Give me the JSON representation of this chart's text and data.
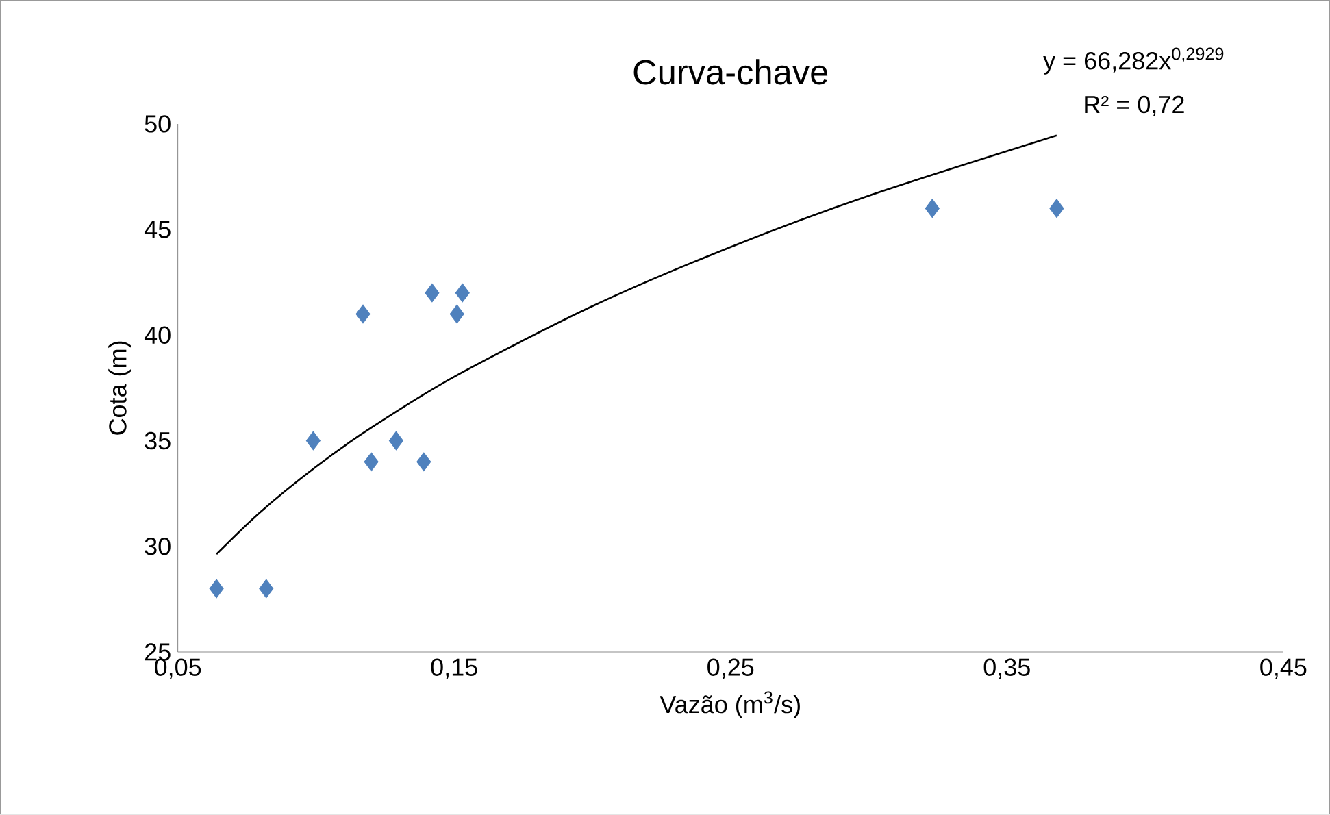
{
  "chart_data": {
    "type": "scatter",
    "title": "Curva-chave",
    "xlabel": "Vazão (m$^{3}$/s)",
    "ylabel": "Cota (m)",
    "annotations": [
      "y = 66,282x$^{0,2929}$",
      "R² = 0,72"
    ],
    "xlim": [
      0.05,
      0.45
    ],
    "ylim": [
      25,
      50
    ],
    "xticks": [
      {
        "value": 0.05,
        "label": "0,05"
      },
      {
        "value": 0.15,
        "label": "0,15"
      },
      {
        "value": 0.25,
        "label": "0,25"
      },
      {
        "value": 0.35,
        "label": "0,35"
      },
      {
        "value": 0.45,
        "label": "0,45"
      }
    ],
    "yticks": [
      25,
      30,
      35,
      40,
      45,
      50
    ],
    "grid": false,
    "series": [
      {
        "color": "#4f81bd",
        "marker": "diamond",
        "x": [
          0.064,
          0.082,
          0.099,
          0.117,
          0.12,
          0.129,
          0.139,
          0.142,
          0.151,
          0.153,
          0.323,
          0.368
        ],
        "values": [
          28,
          28,
          35,
          41,
          34,
          35,
          34,
          42,
          41,
          42,
          46,
          46
        ]
      },
      {
        "type": "line",
        "color": "#000000",
        "marker": "none",
        "line_style": "solid",
        "x": [
          0.064,
          0.08,
          0.1,
          0.12,
          0.15,
          0.2,
          0.25,
          0.3,
          0.368
        ],
        "values": [
          29.63,
          31.64,
          33.77,
          35.62,
          38.03,
          41.37,
          44.17,
          46.6,
          49.45
        ]
      }
    ]
  }
}
